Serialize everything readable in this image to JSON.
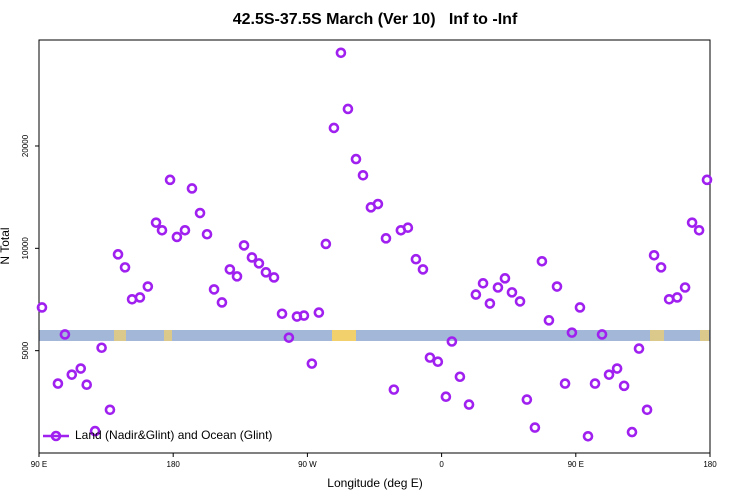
{
  "chart_data": {
    "type": "scatter",
    "title": "42.5S-37.5S March (Ver 10)   Inf to -Inf",
    "x_label": "Longitude (deg E)",
    "y_label": "N Total",
    "xlim": [
      90,
      540
    ],
    "xticks": [
      {
        "value": 90,
        "label": "90 E"
      },
      {
        "value": 180,
        "label": "180"
      },
      {
        "value": 270,
        "label": "90 W"
      },
      {
        "value": 360,
        "label": "0"
      },
      {
        "value": 450,
        "label": "90 E"
      },
      {
        "value": 540,
        "label": "180"
      }
    ],
    "ylim": [
      2500,
      41000
    ],
    "yticks": [
      5000,
      10000,
      20000
    ],
    "log_y": true,
    "legend": "bottom-left",
    "x": [
      92,
      102.7,
      107.4,
      112,
      118,
      122,
      127.6,
      132,
      137.6,
      143,
      147.7,
      152.4,
      157.7,
      163,
      168.5,
      172.5,
      177.9,
      182.5,
      187.9,
      192.6,
      198,
      202.7,
      207.4,
      212.7,
      218,
      222.8,
      227.5,
      232.8,
      237.5,
      242.2,
      247.6,
      253,
      257.6,
      263,
      267.7,
      273,
      277.7,
      282.4,
      287.8,
      292.5,
      297.2,
      302.6,
      307.3,
      312.6,
      317.3,
      322.7,
      328,
      332.7,
      337.4,
      342.8,
      347.5,
      352.2,
      357.5,
      362.9,
      366.9,
      372.3,
      378.4,
      383,
      387.8,
      392.4,
      397.8,
      402.5,
      407.2,
      412.6,
      417.2,
      422.6,
      427.3,
      432,
      437.4,
      442.8,
      447.4,
      452.8,
      458.2,
      462.9,
      467.6,
      472.3,
      477.7,
      482.4,
      487.7,
      492.4,
      497.8,
      502.5,
      507.2,
      512.6,
      518,
      523.3,
      528,
      532.7,
      538
    ],
    "series": [
      {
        "name": "Land (Nadir&Glint) and Ocean (Glint)",
        "color": "#a020f0",
        "values": [
          6700,
          4000,
          5580,
          4250,
          4430,
          3970,
          2900,
          5100,
          3350,
          9600,
          8790,
          7080,
          7170,
          7720,
          11900,
          11300,
          15900,
          10800,
          11300,
          15000,
          12700,
          11000,
          7570,
          6930,
          8670,
          8270,
          10200,
          9400,
          9030,
          8500,
          8210,
          6420,
          5460,
          6300,
          6340,
          4580,
          6470,
          10300,
          22600,
          37600,
          25700,
          18300,
          16400,
          13200,
          13500,
          10700,
          3840,
          11300,
          11500,
          9290,
          8670,
          4770,
          4640,
          3660,
          5320,
          4190,
          3470,
          7310,
          7890,
          6880,
          7670,
          8160,
          7420,
          6980,
          3590,
          2970,
          9160,
          6140,
          7720,
          4000,
          5650,
          6700,
          2800,
          4000,
          5580,
          4250,
          4430,
          3940,
          2880,
          5070,
          3350,
          9540,
          8790,
          7080,
          7170,
          7670,
          11900,
          11300,
          15900
        ]
      }
    ]
  }
}
